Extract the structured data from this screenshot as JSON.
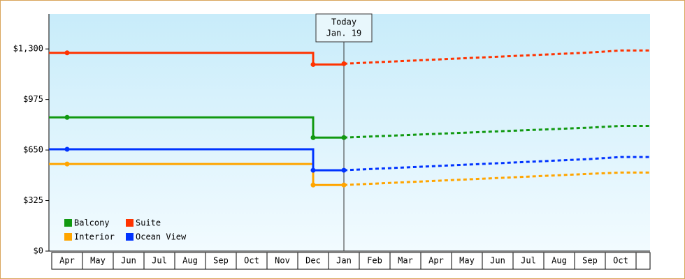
{
  "chart_data": {
    "type": "line",
    "categories": [
      "Apr",
      "May",
      "Jun",
      "Jul",
      "Aug",
      "Sep",
      "Oct",
      "Nov",
      "Dec",
      "Jan",
      "Feb",
      "Mar",
      "Apr",
      "May",
      "Jun",
      "Jul",
      "Aug",
      "Sep",
      "Oct"
    ],
    "series": [
      {
        "name": "Balcony",
        "color": "#119911",
        "values": [
          860,
          860,
          860,
          860,
          860,
          860,
          860,
          860,
          730,
          730,
          738,
          746,
          754,
          762,
          770,
          778,
          786,
          794,
          805
        ]
      },
      {
        "name": "Suite",
        "color": "#ff3300",
        "values": [
          1275,
          1275,
          1275,
          1275,
          1275,
          1275,
          1275,
          1275,
          1200,
          1205,
          1214,
          1223,
          1232,
          1241,
          1250,
          1259,
          1268,
          1277,
          1290
        ]
      },
      {
        "name": "Interior",
        "color": "#ffa500",
        "values": [
          560,
          560,
          560,
          560,
          560,
          560,
          560,
          560,
          425,
          425,
          434,
          443,
          452,
          461,
          470,
          479,
          488,
          497,
          505
        ]
      },
      {
        "name": "Ocean View",
        "color": "#0033ff",
        "values": [
          655,
          655,
          655,
          655,
          655,
          655,
          655,
          655,
          520,
          520,
          529,
          538,
          547,
          556,
          565,
          574,
          583,
          592,
          605
        ]
      }
    ],
    "ylim": [
      0,
      1525
    ],
    "yticks": [
      {
        "value": 0,
        "label": "$0"
      },
      {
        "value": 325,
        "label": "$325"
      },
      {
        "value": 650,
        "label": "$650"
      },
      {
        "value": 975,
        "label": "$975"
      },
      {
        "value": 1300,
        "label": "$1,300"
      }
    ],
    "annotation": {
      "text": [
        "Today",
        "Jan. 19"
      ],
      "at": "Jan"
    },
    "legend": "lower left"
  }
}
